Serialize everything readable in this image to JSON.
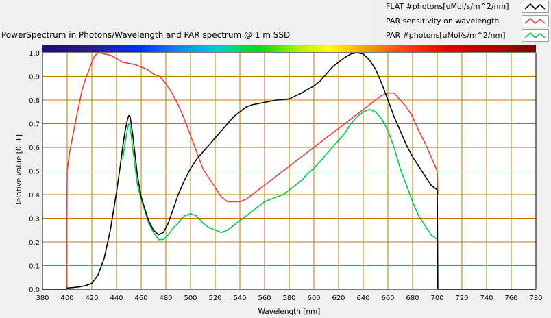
{
  "chart_data": {
    "type": "line",
    "title": "PowerSpectrum in Photons/Wavelength and PAR spectrum @ 1 m SSD",
    "xlabel": "Wavelength [nm]",
    "ylabel": "Relative value [0..1]",
    "xlim": [
      380,
      780
    ],
    "ylim": [
      0,
      1
    ],
    "xticks": [
      380,
      400,
      420,
      440,
      460,
      480,
      500,
      520,
      540,
      560,
      580,
      600,
      620,
      640,
      660,
      680,
      700,
      720,
      740,
      760,
      780
    ],
    "xtick_labels": [
      "380",
      "400",
      "420",
      "440",
      "460",
      "480",
      "500",
      "520",
      "540",
      "560",
      "580",
      "600",
      "620",
      "640",
      "660",
      "680",
      "700",
      "720",
      "740",
      "760",
      "780"
    ],
    "yticks": [
      0,
      0.1,
      0.2,
      0.3,
      0.4,
      0.5,
      0.6,
      0.7,
      0.8,
      0.9,
      1.0
    ],
    "ytick_labels": [
      "0.0",
      "0.1",
      "0.2",
      "0.3",
      "0.4",
      "0.5",
      "0.6",
      "0.7",
      "0.8",
      "0.9",
      "1.0"
    ],
    "grid": true,
    "legend_position": "top-right",
    "colors": {
      "plot_background": "#ffffff",
      "grid": "#c07800",
      "frame": "#000000"
    },
    "series": [
      {
        "name": "FLAT #photons[uMol/s/m^2/nm]",
        "color": "#000000",
        "x": [
          380,
          399,
          400,
          405,
          410,
          415,
          420,
          425,
          430,
          435,
          440,
          443,
          445,
          447,
          449,
          450,
          451,
          453,
          455,
          457,
          460,
          463,
          466,
          470,
          474,
          478,
          482,
          486,
          490,
          495,
          500,
          505,
          510,
          515,
          520,
          525,
          530,
          535,
          540,
          545,
          550,
          555,
          560,
          565,
          570,
          580,
          590,
          600,
          605,
          610,
          615,
          620,
          625,
          630,
          635,
          640,
          645,
          650,
          655,
          660,
          665,
          670,
          675,
          680,
          685,
          690,
          695,
          700,
          700.5,
          720,
          740,
          760,
          780
        ],
        "y": [
          0,
          0,
          0.005,
          0.007,
          0.01,
          0.015,
          0.025,
          0.06,
          0.13,
          0.25,
          0.41,
          0.52,
          0.6,
          0.67,
          0.72,
          0.735,
          0.73,
          0.66,
          0.57,
          0.48,
          0.39,
          0.34,
          0.29,
          0.25,
          0.23,
          0.24,
          0.28,
          0.34,
          0.4,
          0.46,
          0.51,
          0.55,
          0.58,
          0.61,
          0.64,
          0.67,
          0.7,
          0.73,
          0.75,
          0.77,
          0.78,
          0.785,
          0.79,
          0.795,
          0.8,
          0.805,
          0.83,
          0.86,
          0.88,
          0.91,
          0.94,
          0.96,
          0.98,
          0.995,
          1.0,
          0.995,
          0.97,
          0.93,
          0.87,
          0.8,
          0.73,
          0.67,
          0.61,
          0.56,
          0.52,
          0.48,
          0.44,
          0.42,
          0,
          0,
          0,
          0,
          0
        ]
      },
      {
        "name": "PAR sensitivity on wavelength",
        "color": "#e8413c",
        "x": [
          399.5,
          400,
          402,
          405,
          408,
          410,
          412,
          415,
          418,
          420,
          422,
          425,
          428,
          430,
          435,
          440,
          445,
          450,
          455,
          460,
          465,
          470,
          475,
          480,
          485,
          490,
          495,
          500,
          505,
          510,
          515,
          520,
          525,
          530,
          535,
          540,
          545,
          550,
          555,
          560,
          565,
          570,
          575,
          580,
          585,
          590,
          595,
          600,
          605,
          610,
          615,
          620,
          625,
          630,
          635,
          640,
          645,
          650,
          655,
          660,
          665,
          670,
          675,
          680,
          685,
          690,
          695,
          700,
          700.5
        ],
        "y": [
          0,
          0.5,
          0.58,
          0.66,
          0.74,
          0.79,
          0.84,
          0.89,
          0.93,
          0.96,
          0.985,
          1.0,
          0.998,
          0.995,
          0.99,
          0.975,
          0.96,
          0.955,
          0.95,
          0.94,
          0.93,
          0.91,
          0.9,
          0.87,
          0.83,
          0.78,
          0.72,
          0.65,
          0.58,
          0.51,
          0.47,
          0.43,
          0.39,
          0.37,
          0.37,
          0.37,
          0.38,
          0.4,
          0.42,
          0.44,
          0.46,
          0.48,
          0.5,
          0.52,
          0.54,
          0.56,
          0.58,
          0.6,
          0.62,
          0.64,
          0.66,
          0.68,
          0.7,
          0.72,
          0.74,
          0.76,
          0.78,
          0.8,
          0.82,
          0.83,
          0.83,
          0.8,
          0.77,
          0.73,
          0.67,
          0.62,
          0.56,
          0.5,
          0.4
        ]
      },
      {
        "name": "PAR #photons[uMol/s/m^2/nm]",
        "color": "#00c84b",
        "x": [
          445,
          447,
          449,
          450,
          451,
          453,
          455,
          457,
          460,
          463,
          466,
          470,
          474,
          478,
          482,
          486,
          490,
          495,
          500,
          505,
          510,
          515,
          520,
          525,
          530,
          535,
          540,
          545,
          550,
          555,
          560,
          565,
          570,
          575,
          580,
          585,
          590,
          595,
          600,
          605,
          610,
          615,
          620,
          625,
          630,
          635,
          640,
          645,
          650,
          655,
          660,
          665,
          670,
          675,
          680,
          685,
          690,
          695,
          700
        ],
        "y": [
          0.55,
          0.62,
          0.68,
          0.7,
          0.69,
          0.6,
          0.52,
          0.44,
          0.38,
          0.33,
          0.28,
          0.24,
          0.21,
          0.21,
          0.23,
          0.26,
          0.28,
          0.31,
          0.32,
          0.31,
          0.28,
          0.26,
          0.25,
          0.24,
          0.25,
          0.27,
          0.29,
          0.31,
          0.33,
          0.35,
          0.37,
          0.38,
          0.39,
          0.4,
          0.42,
          0.44,
          0.46,
          0.49,
          0.51,
          0.54,
          0.57,
          0.6,
          0.63,
          0.66,
          0.7,
          0.73,
          0.75,
          0.76,
          0.75,
          0.72,
          0.67,
          0.6,
          0.51,
          0.44,
          0.37,
          0.31,
          0.27,
          0.23,
          0.21
        ]
      }
    ]
  }
}
